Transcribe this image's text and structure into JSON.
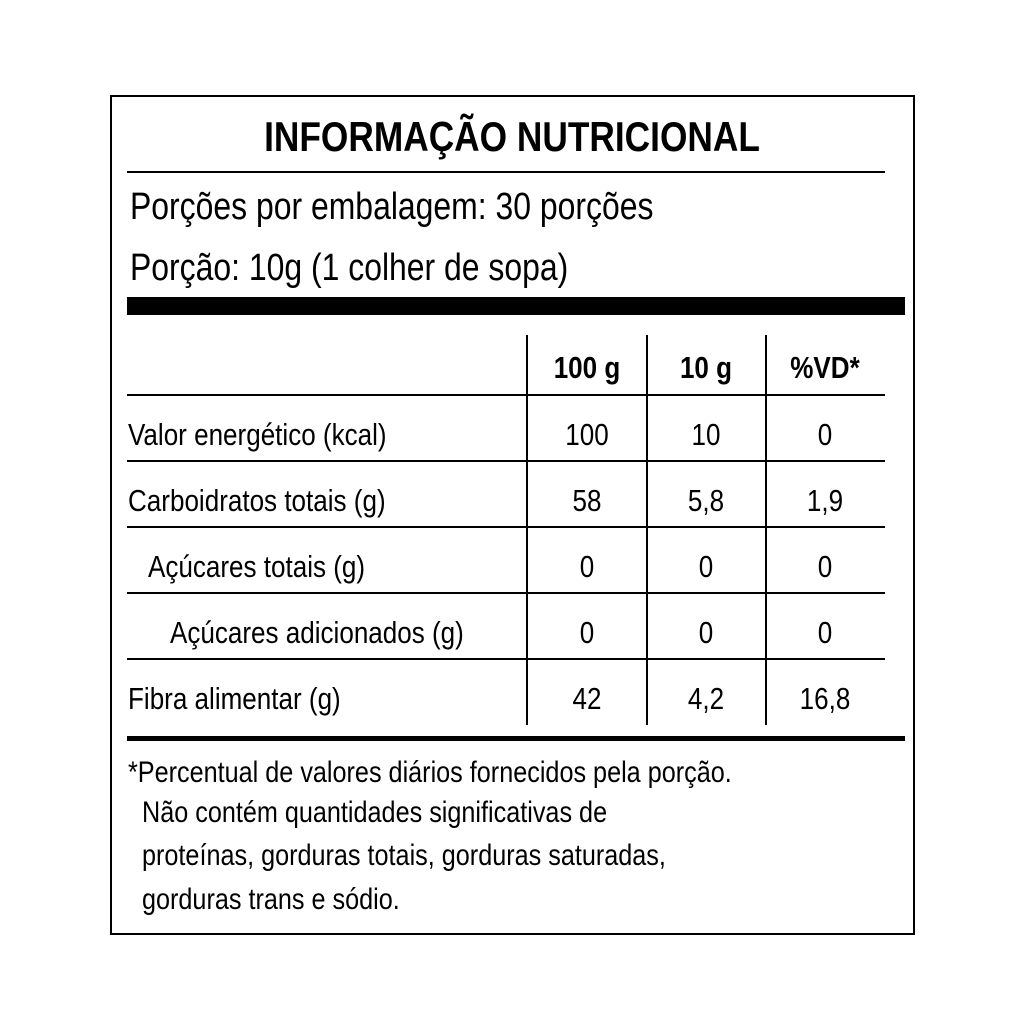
{
  "title": "INFORMAÇÃO NUTRICIONAL",
  "servings_per_package": "Porções por embalagem: 30 porções",
  "serving_size": "Porção: 10g (1 colher de sopa)",
  "columns": [
    "100 g",
    "10 g",
    "%VD*"
  ],
  "rows": [
    {
      "label": "Valor energético (kcal)",
      "values": [
        "100",
        "10",
        "0"
      ]
    },
    {
      "label": "Carboidratos totais (g)",
      "values": [
        "58",
        "5,8",
        "1,9"
      ]
    },
    {
      "label": "Açúcares totais (g)",
      "values": [
        "0",
        "0",
        "0"
      ]
    },
    {
      "label": "Açúcares adicionados (g)",
      "values": [
        "0",
        "0",
        "0"
      ]
    },
    {
      "label": "Fibra alimentar (g)",
      "values": [
        "42",
        "4,2",
        "16,8"
      ]
    }
  ],
  "footnote": [
    "*Percentual de valores diários fornecidos pela porção.",
    "Não contém quantidades significativas de",
    "proteínas, gorduras totais, gorduras saturadas,",
    "gorduras trans e sódio."
  ]
}
